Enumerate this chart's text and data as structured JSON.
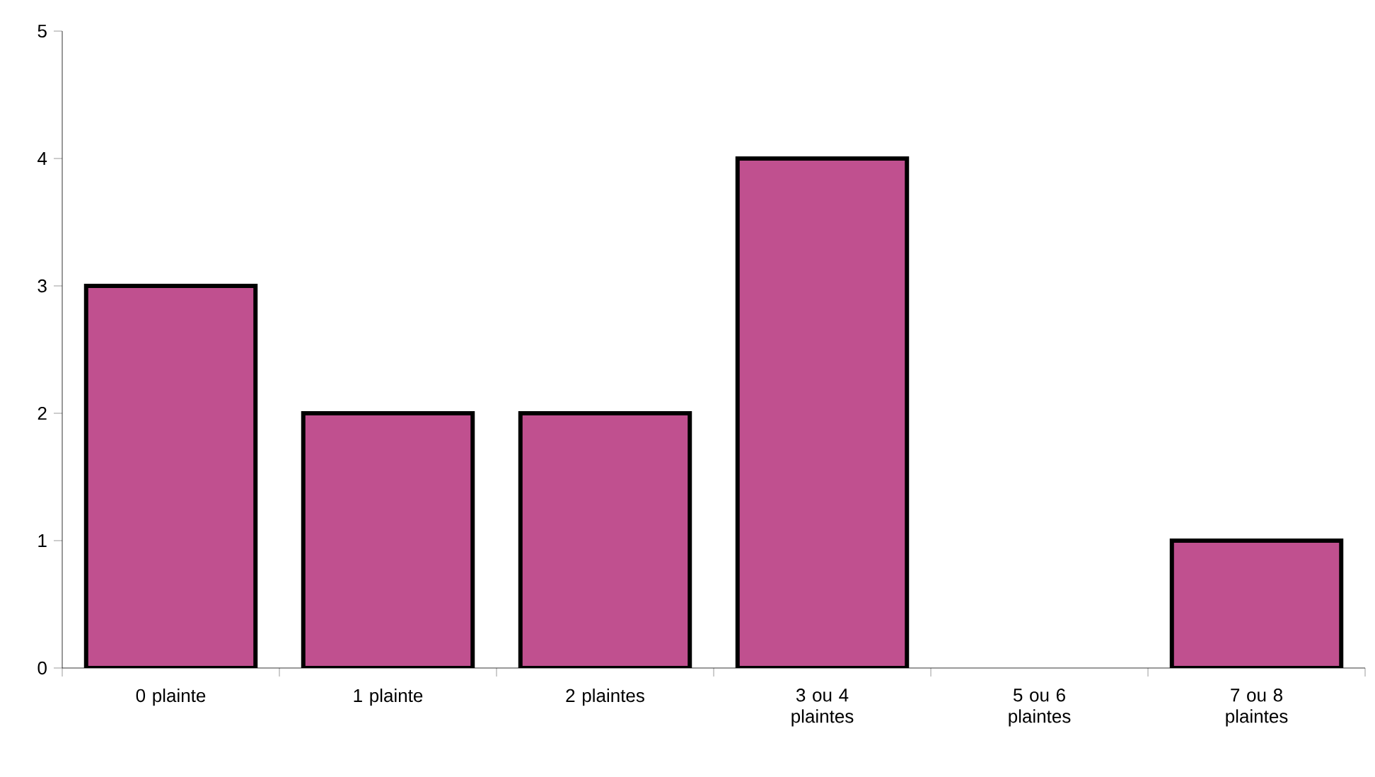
{
  "chart_data": {
    "type": "bar",
    "categories": [
      "0 plainte",
      "1 plainte",
      "2 plaintes",
      "3 ou 4 plaintes",
      "5 ou 6 plaintes",
      "7 ou 8 plaintes"
    ],
    "values": [
      3,
      2,
      2,
      4,
      0,
      1
    ],
    "color": "#c0508f",
    "ylim": [
      0,
      5
    ],
    "yticks": [
      0,
      1,
      2,
      3,
      4,
      5
    ],
    "grid": false
  }
}
